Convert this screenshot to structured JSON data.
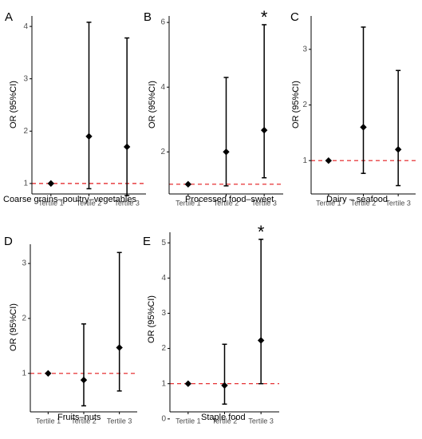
{
  "chart_data": [
    {
      "type": "scatter",
      "panel": "A",
      "categories": [
        "Tertile 1",
        "Tertile 2",
        "Tertile 3"
      ],
      "or": [
        1.0,
        1.9,
        1.7
      ],
      "ci_low": [
        1.0,
        0.9,
        0.77
      ],
      "ci_high": [
        1.0,
        4.08,
        3.78
      ],
      "xlabel": "Coarse grains–poultry–vegetables",
      "ylabel": "OR (95%CI)",
      "ylim": [
        0.8,
        4.2
      ],
      "yticks": [
        1,
        2,
        3,
        4
      ],
      "yticklabels": [
        "1",
        "2",
        "3",
        "4"
      ],
      "reference_line": 1,
      "significant": [
        false,
        false,
        false
      ]
    },
    {
      "type": "scatter",
      "panel": "B",
      "categories": [
        "Tertile 1",
        "Tertile 2",
        "Tertile 3"
      ],
      "or": [
        1.0,
        2.0,
        2.67
      ],
      "ci_low": [
        1.0,
        0.95,
        1.2
      ],
      "ci_high": [
        1.0,
        4.3,
        5.93
      ],
      "xlabel": "Processed food–sweet",
      "ylabel": "OR (95%CI)",
      "ylim": [
        0.7,
        6.2
      ],
      "yticks": [
        2,
        4,
        6
      ],
      "yticklabels": [
        "2",
        "4",
        "6"
      ],
      "reference_line": 1,
      "significance_marker": "*",
      "significant": [
        false,
        false,
        true
      ]
    },
    {
      "type": "scatter",
      "panel": "C",
      "categories": [
        "Tertile 1",
        "Tertile 2",
        "Tertile 3"
      ],
      "or": [
        1.0,
        1.6,
        1.2
      ],
      "ci_low": [
        1.0,
        0.77,
        0.55
      ],
      "ci_high": [
        1.0,
        3.4,
        2.62
      ],
      "xlabel": "Dairy – seafood",
      "ylabel": "OR (95%CI)",
      "ylim": [
        0.4,
        3.6
      ],
      "yticks": [
        1,
        2,
        3
      ],
      "yticklabels": [
        "1",
        "2",
        "3"
      ],
      "reference_line": 1,
      "significant": [
        false,
        false,
        false
      ]
    },
    {
      "type": "scatter",
      "panel": "D",
      "categories": [
        "Tertile 1",
        "Tertile 2",
        "Tertile 3"
      ],
      "or": [
        1.0,
        0.88,
        1.47
      ],
      "ci_low": [
        1.0,
        0.41,
        0.68
      ],
      "ci_high": [
        1.0,
        1.9,
        3.2
      ],
      "xlabel": "Fruits–nuts",
      "ylabel": "OR (95%CI)",
      "ylim": [
        0.3,
        3.35
      ],
      "yticks": [
        1,
        2,
        3
      ],
      "yticklabels": [
        "1",
        "2",
        "3"
      ],
      "reference_line": 1,
      "significant": [
        false,
        false,
        false
      ]
    },
    {
      "type": "scatter",
      "panel": "E",
      "categories": [
        "Tertile 1",
        "Tertile 2",
        "Tertile 3"
      ],
      "or": [
        1.0,
        0.95,
        2.23
      ],
      "ci_low": [
        1.0,
        0.42,
        1.0
      ],
      "ci_high": [
        1.0,
        2.12,
        5.1
      ],
      "xlabel": "Staple food",
      "ylabel": "OR (95%CI)",
      "ylim": [
        0.2,
        5.3
      ],
      "yticks": [
        0,
        1,
        2,
        3,
        4,
        5
      ],
      "yticklabels": [
        "0",
        "1",
        "2",
        "3",
        "4",
        "5"
      ],
      "reference_line": 1,
      "significance_marker": "*",
      "significant": [
        false,
        false,
        true
      ]
    }
  ],
  "colors": {
    "points": "#000000",
    "errorbars": "#000000",
    "reference_line": "#e31a1c",
    "axis": "#000000",
    "tick_labels": "#4d4d4d"
  }
}
